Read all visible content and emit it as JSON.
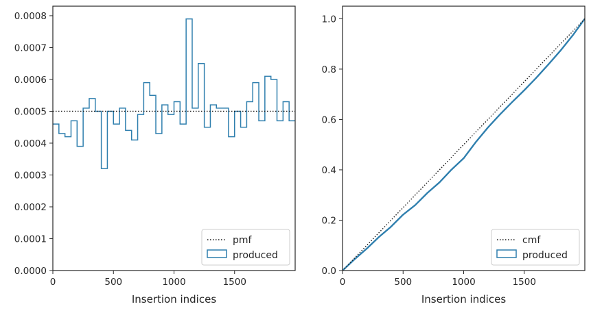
{
  "colors": {
    "series": "#2f7fae",
    "reference": "#1a1a1a",
    "axes": "#262626",
    "legend_border": "#cccccc"
  },
  "chart_data": [
    {
      "type": "line",
      "style": "step-histogram",
      "xlabel": "Insertion indices",
      "ylabel": "",
      "xlim": [
        0,
        2000
      ],
      "ylim": [
        0,
        0.00083
      ],
      "xticks": [
        0,
        500,
        1000,
        1500
      ],
      "xtick_labels": [
        "0",
        "500",
        "1000",
        "1500"
      ],
      "yticks": [
        0,
        0.0001,
        0.0002,
        0.0003,
        0.0004,
        0.0005,
        0.0006,
        0.0007,
        0.0008
      ],
      "ytick_labels": [
        "0.0000",
        "0.0001",
        "0.0002",
        "0.0003",
        "0.0004",
        "0.0005",
        "0.0006",
        "0.0007",
        "0.0008"
      ],
      "grid": false,
      "legend_position": "bottom-right",
      "bin_edges": [
        0,
        50,
        100,
        150,
        200,
        250,
        300,
        350,
        400,
        450,
        500,
        550,
        600,
        650,
        700,
        750,
        800,
        850,
        900,
        950,
        1000,
        1050,
        1100,
        1150,
        1200,
        1250,
        1300,
        1350,
        1400,
        1450,
        1500,
        1550,
        1600,
        1650,
        1700,
        1750,
        1800,
        1850,
        1900,
        1950,
        2000
      ],
      "series": [
        {
          "name": "pmf",
          "line_style": "dotted",
          "x": [
            0,
            2000
          ],
          "values": [
            0.0005,
            0.0005
          ]
        },
        {
          "name": "produced",
          "line_style": "step",
          "values": [
            0.00046,
            0.00043,
            0.00042,
            0.00047,
            0.00039,
            0.00051,
            0.00054,
            0.0005,
            0.00032,
            0.0005,
            0.00046,
            0.00051,
            0.00044,
            0.00041,
            0.00049,
            0.00059,
            0.00055,
            0.00043,
            0.00052,
            0.00049,
            0.00053,
            0.00046,
            0.00079,
            0.00051,
            0.00065,
            0.00045,
            0.00052,
            0.00051,
            0.00051,
            0.00042,
            0.0005,
            0.00045,
            0.00053,
            0.00059,
            0.00047,
            0.00061,
            0.0006,
            0.00047,
            0.00053,
            0.00047
          ]
        }
      ]
    },
    {
      "type": "line",
      "xlabel": "Insertion indices",
      "ylabel": "",
      "xlim": [
        0,
        2000
      ],
      "ylim": [
        0,
        1.05
      ],
      "xticks": [
        0,
        500,
        1000,
        1500
      ],
      "xtick_labels": [
        "0",
        "500",
        "1000",
        "1500"
      ],
      "yticks": [
        0,
        0.2,
        0.4,
        0.6,
        0.8,
        1.0
      ],
      "ytick_labels": [
        "0.0",
        "0.2",
        "0.4",
        "0.6",
        "0.8",
        "1.0"
      ],
      "grid": false,
      "legend_position": "bottom-right",
      "series": [
        {
          "name": "cmf",
          "line_style": "dotted",
          "x": [
            0,
            2000
          ],
          "values": [
            0,
            1.0
          ]
        },
        {
          "name": "produced",
          "line_style": "solid",
          "x": [
            0,
            100,
            200,
            300,
            400,
            500,
            600,
            700,
            800,
            900,
            1000,
            1100,
            1200,
            1300,
            1400,
            1500,
            1600,
            1700,
            1800,
            1900,
            2000
          ],
          "values": [
            0,
            0.045,
            0.087,
            0.133,
            0.174,
            0.222,
            0.26,
            0.308,
            0.35,
            0.401,
            0.446,
            0.51,
            0.568,
            0.62,
            0.669,
            0.716,
            0.766,
            0.819,
            0.874,
            0.934,
            1.0
          ]
        }
      ]
    }
  ]
}
